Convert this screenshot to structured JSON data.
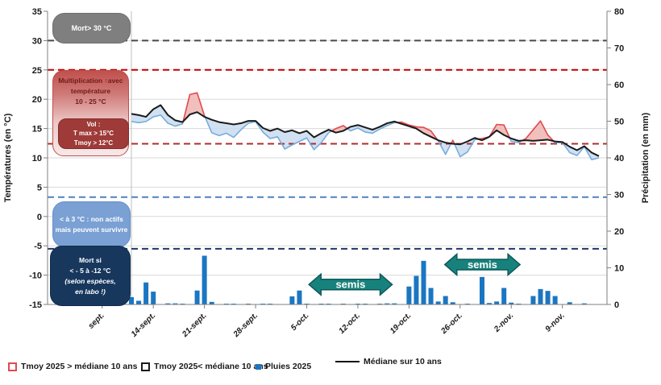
{
  "chart_data": {
    "type": "line+bar",
    "title": "",
    "left_axis": {
      "label": "Températures (en °C)",
      "min": -15,
      "max": 35,
      "tick_step": 5
    },
    "right_axis": {
      "label": "Précipitation (en mm)",
      "min": 0,
      "max": 80,
      "tick_step": 10
    },
    "x_ticks": [
      {
        "label": "sept.",
        "day": -4
      },
      {
        "label": "14-sept.",
        "day": 3
      },
      {
        "label": "21-sept.",
        "day": 10
      },
      {
        "label": "28-sept.",
        "day": 17
      },
      {
        "label": "5-oct.",
        "day": 24
      },
      {
        "label": "12-oct.",
        "day": 31
      },
      {
        "label": "19-oct.",
        "day": 38
      },
      {
        "label": "26-oct.",
        "day": 45
      },
      {
        "label": "2-nov.",
        "day": 52
      },
      {
        "label": "9-nov.",
        "day": 59
      }
    ],
    "series": [
      {
        "name": "Médiane sur 10 ans",
        "type": "line",
        "axis": "left",
        "color": "#1a1a1a",
        "values": [
          17.5,
          17.3,
          17.0,
          18.3,
          19.0,
          17.3,
          16.4,
          16.1,
          17.4,
          17.8,
          17.0,
          16.5,
          16.1,
          15.9,
          15.7,
          15.9,
          16.3,
          16.3,
          15.1,
          14.6,
          15.0,
          14.4,
          14.7,
          14.2,
          14.6,
          13.5,
          14.2,
          14.8,
          14.3,
          14.6,
          15.3,
          15.6,
          15.2,
          14.8,
          15.3,
          15.9,
          16.2,
          15.8,
          15.4,
          15.0,
          14.2,
          13.6,
          13.0,
          12.6,
          12.4,
          12.3,
          12.8,
          13.4,
          13.0,
          13.6,
          14.7,
          13.9,
          13.3,
          12.9,
          13.0,
          12.9,
          13.0,
          13.1,
          12.8,
          12.7,
          11.9,
          11.3,
          12.0,
          10.9,
          10.3
        ]
      },
      {
        "name": "Tmoy 2025",
        "type": "line",
        "axis": "left",
        "color_above_median": "#e04a4e",
        "color_below_median": "#76acdc",
        "fill_above": "#eeb5b2",
        "fill_below": "#c9dcf0",
        "values": [
          16.2,
          16.0,
          16.2,
          17.0,
          17.3,
          15.9,
          15.4,
          15.8,
          20.8,
          21.1,
          17.2,
          14.3,
          13.8,
          14.2,
          13.5,
          14.8,
          15.9,
          16.2,
          14.4,
          13.3,
          13.6,
          11.5,
          12.2,
          12.8,
          13.4,
          11.4,
          12.6,
          14.3,
          15.0,
          15.5,
          14.6,
          15.1,
          14.4,
          14.2,
          14.9,
          15.5,
          16.0,
          16.1,
          15.6,
          15.3,
          15.2,
          14.6,
          12.9,
          10.6,
          13.0,
          10.2,
          11.0,
          13.1,
          13.3,
          13.6,
          15.7,
          15.6,
          12.8,
          12.6,
          13.3,
          14.8,
          16.3,
          13.9,
          12.6,
          12.6,
          10.9,
          10.4,
          11.9,
          9.7,
          10.0
        ]
      },
      {
        "name": "Pluies 2025",
        "type": "bar",
        "axis": "right",
        "color": "#1b76c2",
        "values": [
          2,
          1,
          6,
          3.5,
          0,
          0.3,
          0.3,
          0.2,
          0,
          3.8,
          13.3,
          0.7,
          0,
          0.2,
          0.2,
          0,
          0.2,
          0,
          0.2,
          0.2,
          0,
          0,
          2.2,
          3.8,
          0.2,
          0,
          0.2,
          0.2,
          0,
          0.2,
          0,
          0.2,
          0.2,
          0,
          0.2,
          0.3,
          0.3,
          0,
          4.9,
          7.8,
          11.9,
          4.5,
          0.8,
          2.3,
          0.6,
          0,
          0.2,
          0,
          7.5,
          0.4,
          0.8,
          4.5,
          0.5,
          0.2,
          0,
          2.3,
          4.2,
          3.7,
          2.3,
          0,
          0.6,
          0,
          0.3,
          0,
          0
        ]
      }
    ],
    "reference_lines": [
      {
        "temp": 30,
        "color": "#4a4a4a"
      },
      {
        "temp": 25,
        "color": "#c00000"
      },
      {
        "temp": 12.4,
        "color": "#b02c2c"
      },
      {
        "temp": 3.3,
        "color": "#4f81bd"
      },
      {
        "temp": -5.5,
        "color": "#1f3864"
      }
    ]
  },
  "annotations": {
    "boxes": [
      {
        "id": "mort-chaud",
        "text": "Mort> 30 °C"
      },
      {
        "id": "multiplication",
        "text": "Multiplication ↑avec\ntempérature\n10 - 25 °C"
      },
      {
        "id": "vol",
        "text": "Vol :\nT max > 15°C\nTmoy > 12°C"
      },
      {
        "id": "non-actifs",
        "text": "< à 3 °C : non actifs\nmais peuvent survivre"
      },
      {
        "id": "mort-froid",
        "text": "Mort si\n< - 5 à -12 °C",
        "text_italic": "(selon espèces,\nen labo !)"
      }
    ],
    "arrows": [
      {
        "label": "semis",
        "day_start": 24.3,
        "day_end": 35.7,
        "t_center": -11.6,
        "color": "#17827b"
      },
      {
        "label": "semis",
        "day_start": 42.9,
        "day_end": 53.2,
        "t_center": -8.2,
        "color": "#17827b"
      }
    ]
  },
  "legend": {
    "items": [
      {
        "swatch": "red-outline",
        "label": "Tmoy 2025 > médiane 10 ans"
      },
      {
        "swatch": "black-outline",
        "label": "Tmoy 2025< médiane 10 ans"
      },
      {
        "swatch": "blue-fill",
        "label": "Pluies 2025"
      },
      {
        "swatch": "black-line",
        "label": "Médiane sur 10 ans"
      }
    ]
  }
}
